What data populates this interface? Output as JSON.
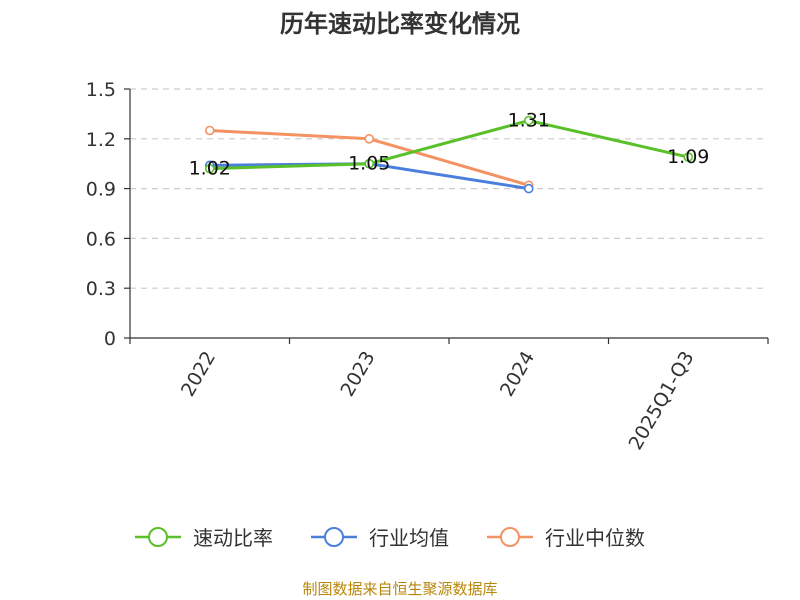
{
  "chart_data": {
    "type": "line",
    "title": "历年速动比率变化情况",
    "categories": [
      "2022",
      "2023",
      "2024",
      "2025Q1-Q3"
    ],
    "ylim": [
      0,
      1.5
    ],
    "yticks": [
      "0",
      "0.3",
      "0.6",
      "0.9",
      "1.2",
      "1.5"
    ],
    "grid": true,
    "legend_position": "bottom",
    "series": [
      {
        "name": "速动比率",
        "color": "#5ac02a",
        "values": [
          1.02,
          1.05,
          1.31,
          1.09
        ],
        "labels": [
          "1.02",
          "1.05",
          "1.31",
          "1.09"
        ]
      },
      {
        "name": "行业均值",
        "color": "#4a7fdc",
        "values": [
          1.04,
          1.05,
          0.9,
          null
        ]
      },
      {
        "name": "行业中位数",
        "color": "#f59262",
        "values": [
          1.25,
          1.2,
          0.92,
          null
        ]
      }
    ],
    "source": "制图数据来自恒生聚源数据库"
  }
}
